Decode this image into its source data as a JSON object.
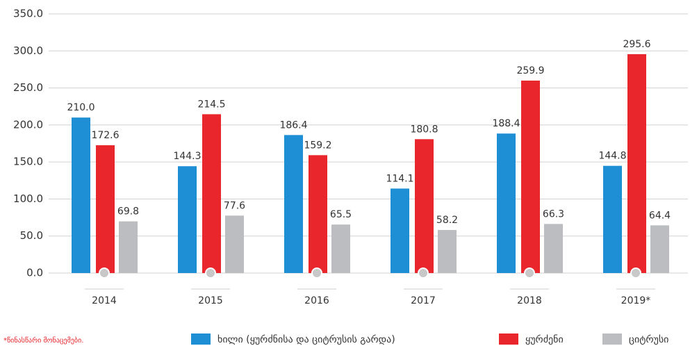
{
  "chart_data": {
    "type": "bar",
    "categories": [
      "2014",
      "2015",
      "2016",
      "2017",
      "2018",
      "2019*"
    ],
    "series": [
      {
        "name": "ხილი (ყურძნისა და ციტრუსის გარდა)",
        "color": "#1e8fd5",
        "values": [
          210.0,
          144.3,
          186.4,
          114.1,
          188.4,
          144.8
        ],
        "value_labels": [
          "210.0",
          "144.3",
          "186.4",
          "114.1",
          "188.4",
          "144.8"
        ]
      },
      {
        "name": "ყურძენი",
        "color": "#e8262b",
        "values": [
          172.6,
          214.5,
          159.2,
          180.8,
          259.9,
          295.6
        ],
        "value_labels": [
          "172.6",
          "214.5",
          "159.2",
          "180.8",
          "259.9",
          "295.6"
        ]
      },
      {
        "name": "ციტრუსი",
        "color": "#bcbdc0",
        "values": [
          69.8,
          77.6,
          65.5,
          58.2,
          66.3,
          64.4
        ],
        "value_labels": [
          "69.8",
          "77.6",
          "65.5",
          "58.2",
          "66.3",
          "64.4"
        ]
      }
    ],
    "ylim": [
      0,
      350
    ],
    "yticks": [
      {
        "value": 0,
        "label": "0.0"
      },
      {
        "value": 50,
        "label": "50.0"
      },
      {
        "value": 100,
        "label": "100.0"
      },
      {
        "value": 150,
        "label": "150.0"
      },
      {
        "value": 200,
        "label": "200.0"
      },
      {
        "value": 250,
        "label": "250.0"
      },
      {
        "value": 300,
        "label": "300.0"
      },
      {
        "value": 350,
        "label": "350.0"
      }
    ],
    "grid": true,
    "legend": "bottom",
    "footnote": "*წინასწარი მონაცემები."
  }
}
